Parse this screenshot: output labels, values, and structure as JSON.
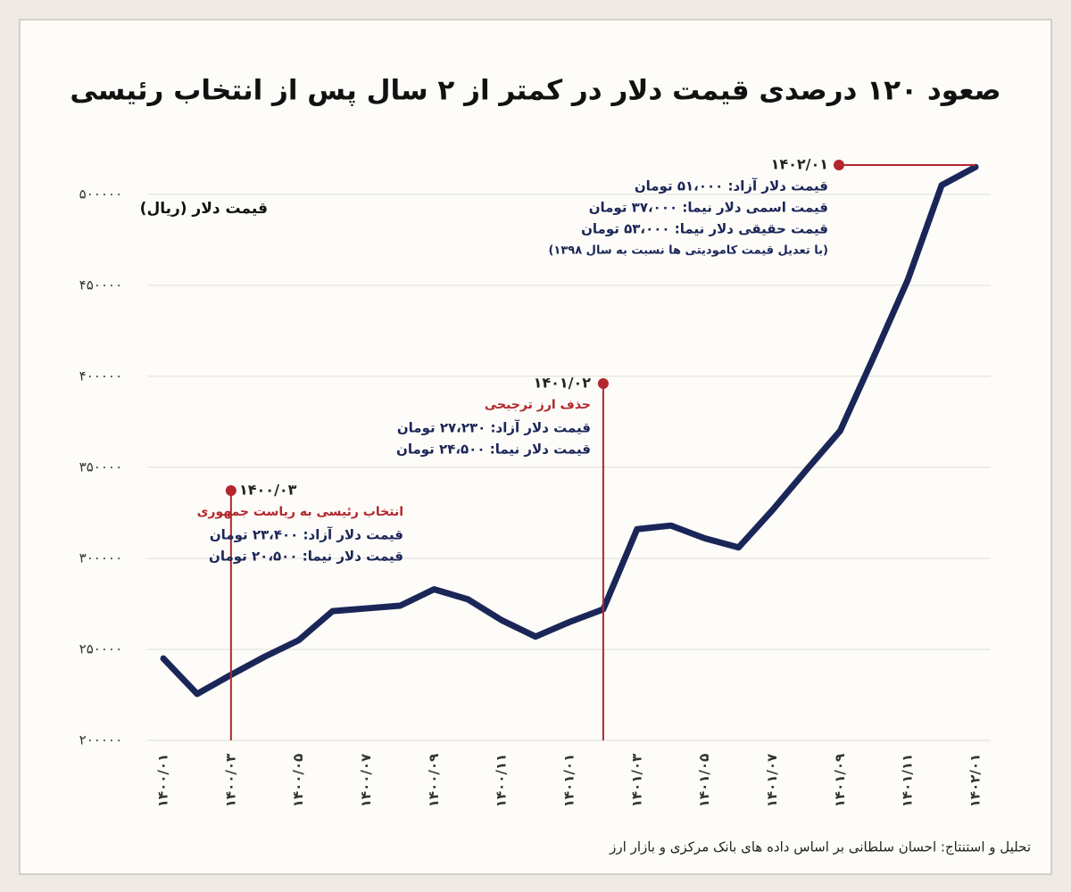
{
  "chart_data": {
    "type": "line",
    "title": "صعود ۱۲۰ درصدی قیمت دلار در کمتر از ۲ سال پس از انتخاب رئیسی",
    "y_label": "قیمت دلار (ریال)",
    "source": "تحلیل و استنتاج: احسان سلطانی بر اساس داده های بانک مرکزی و بازار ارز",
    "categories": [
      "۱۴۰۰/۰۱",
      null,
      "۱۴۰۰/۰۳",
      null,
      "۱۴۰۰/۰۵",
      null,
      "۱۴۰۰/۰۷",
      null,
      "۱۴۰۰/۰۹",
      null,
      "۱۴۰۰/۱۱",
      null,
      "۱۴۰۱/۰۱",
      null,
      "۱۴۰۱/۰۳",
      null,
      "۱۴۰۱/۰۵",
      null,
      "۱۴۰۱/۰۷",
      null,
      "۱۴۰۱/۰۹",
      null,
      "۱۴۰۱/۱۱",
      null,
      "۱۴۰۲/۰۱"
    ],
    "values": [
      245000,
      225500,
      236000,
      246000,
      255000,
      271000,
      272500,
      274000,
      283000,
      277500,
      266000,
      257000,
      265000,
      272000,
      316000,
      318000,
      311000,
      306000,
      326500,
      348500,
      370000,
      411000,
      453000,
      505000,
      515000
    ],
    "color": "#1b2658",
    "ylim": [
      200000,
      520000
    ],
    "yticks": [
      {
        "value": 200000,
        "label": "۲۰۰۰۰۰"
      },
      {
        "value": 250000,
        "label": "۲۵۰۰۰۰"
      },
      {
        "value": 300000,
        "label": "۳۰۰۰۰۰"
      },
      {
        "value": 350000,
        "label": "۳۵۰۰۰۰"
      },
      {
        "value": 400000,
        "label": "۴۰۰۰۰۰"
      },
      {
        "value": 450000,
        "label": "۴۵۰۰۰۰"
      },
      {
        "value": 500000,
        "label": "۵۰۰۰۰۰"
      }
    ],
    "grid": true,
    "annotations": [
      {
        "date": "۱۴۰۰/۰۳",
        "event": "انتخاب رئیسی به ریاست جمهوری",
        "lines": [
          "قیمت دلار آزاد: ۲۳،۴۰۰ تومان",
          "قیمت دلار نیما: ۲۰،۵۰۰ تومان"
        ]
      },
      {
        "date": "۱۴۰۱/۰۲",
        "event": "حذف ارز ترجیحی",
        "lines": [
          "قیمت دلار آزاد: ۲۷،۲۳۰ تومان",
          "قیمت دلار نیما: ۲۴،۵۰۰ تومان"
        ]
      },
      {
        "date": "۱۴۰۲/۰۱",
        "lines": [
          "قیمت دلار آزاد: ۵۱،۰۰۰ تومان",
          "قیمت اسمی دلار نیما: ۳۷،۰۰۰ تومان",
          "قیمت حقیقی دلار نیما: ۵۳،۰۰۰ تومان",
          "(با تعدیل قیمت کامودیتی ها نسبت به سال ۱۳۹۸)"
        ]
      }
    ]
  }
}
